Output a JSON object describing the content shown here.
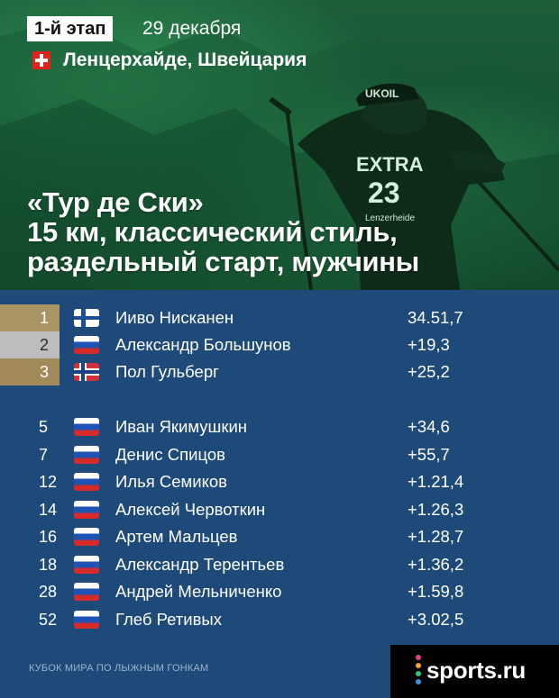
{
  "header": {
    "stage": "1-й этап",
    "date": "29 декабря",
    "location": "Ленцерхайде, Швейцария",
    "title_lines": [
      "«Тур де Ски»",
      "15 км, классический стиль,",
      "раздельный старт, мужчины"
    ]
  },
  "podium": [
    {
      "position": "1",
      "flag": "finland-flag-icon",
      "name": "Ииво Нисканен",
      "time": "34.51,7"
    },
    {
      "position": "2",
      "flag": "russia-flag-icon",
      "name": "Александр Большунов",
      "time": "+19,3"
    },
    {
      "position": "3",
      "flag": "norway-flag-icon",
      "name": "Пол Гульберг",
      "time": "+25,2"
    }
  ],
  "others": [
    {
      "position": "5",
      "flag": "russia-flag-icon",
      "name": "Иван Якимушкин",
      "time": "+34,6"
    },
    {
      "position": "7",
      "flag": "russia-flag-icon",
      "name": "Денис Спицов",
      "time": "+55,7"
    },
    {
      "position": "12",
      "flag": "russia-flag-icon",
      "name": "Илья Семиков",
      "time": "+1.21,4"
    },
    {
      "position": "14",
      "flag": "russia-flag-icon",
      "name": "Алексей Червоткин",
      "time": "+1.26,3"
    },
    {
      "position": "16",
      "flag": "russia-flag-icon",
      "name": "Артем Мальцев",
      "time": "+1.28,7"
    },
    {
      "position": "18",
      "flag": "russia-flag-icon",
      "name": "Александр Терентьев",
      "time": "+1.36,2"
    },
    {
      "position": "28",
      "flag": "russia-flag-icon",
      "name": "Андрей Мельниченко",
      "time": "+1.59,8"
    },
    {
      "position": "52",
      "flag": "russia-flag-icon",
      "name": "Глеб Ретивых",
      "time": "+3.02,5"
    }
  ],
  "footer": {
    "caption": "КУБОК МИРА ПО ЛЫЖНЫМ ГОНКАМ",
    "brand": "sports.ru",
    "brand_dot_colors": [
      "#e83e8c",
      "#f5a623",
      "#2ecc71",
      "#3498db"
    ]
  },
  "colors": {
    "background": "#1d4a78",
    "gold": "#a99563",
    "silver": "#bdbdbd",
    "bronze": "#a28a5a"
  }
}
